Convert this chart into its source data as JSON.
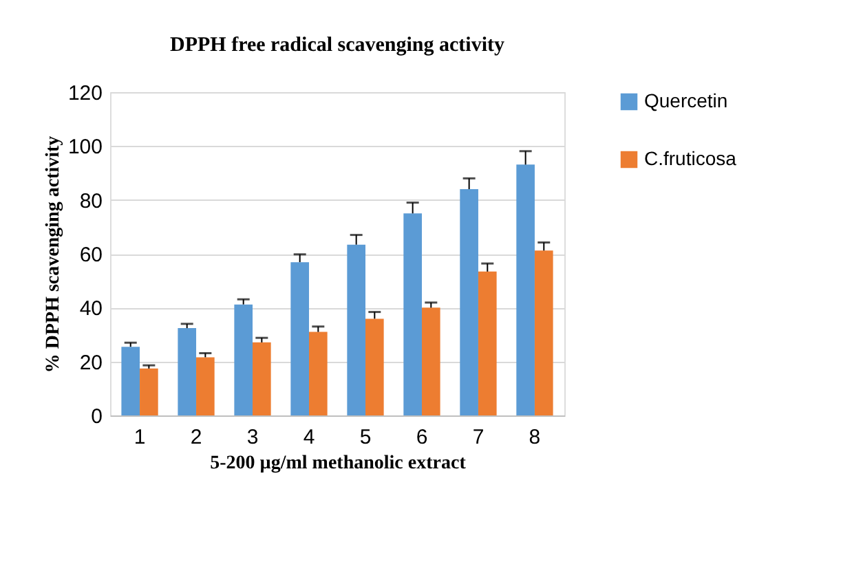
{
  "chart_data": {
    "type": "bar",
    "title": "DPPH free radical scavenging activity",
    "xlabel": "5-200 µg/ml methanolic extract",
    "ylabel": "% DPPH scavenging activity",
    "categories": [
      "1",
      "2",
      "3",
      "4",
      "5",
      "6",
      "7",
      "8"
    ],
    "series": [
      {
        "name": "Quercetin",
        "color": "#5b9bd5",
        "values": [
          25.5,
          32.4,
          41.2,
          56.9,
          63.4,
          75,
          84,
          93.1
        ],
        "errors": [
          1.5,
          1.6,
          1.9,
          2.9,
          3.6,
          4,
          4,
          5
        ]
      },
      {
        "name": "C.fruticosa",
        "color": "#ed7d31",
        "values": [
          17.4,
          21.6,
          27.1,
          31,
          35.9,
          40,
          53.4,
          61.2
        ],
        "errors": [
          1.2,
          1.5,
          1.7,
          2,
          2.5,
          1.9,
          3,
          3
        ]
      }
    ],
    "ylim": [
      0,
      120
    ],
    "yticks": [
      0,
      20,
      40,
      60,
      80,
      100,
      120
    ],
    "grid": "y",
    "legend": "right"
  }
}
